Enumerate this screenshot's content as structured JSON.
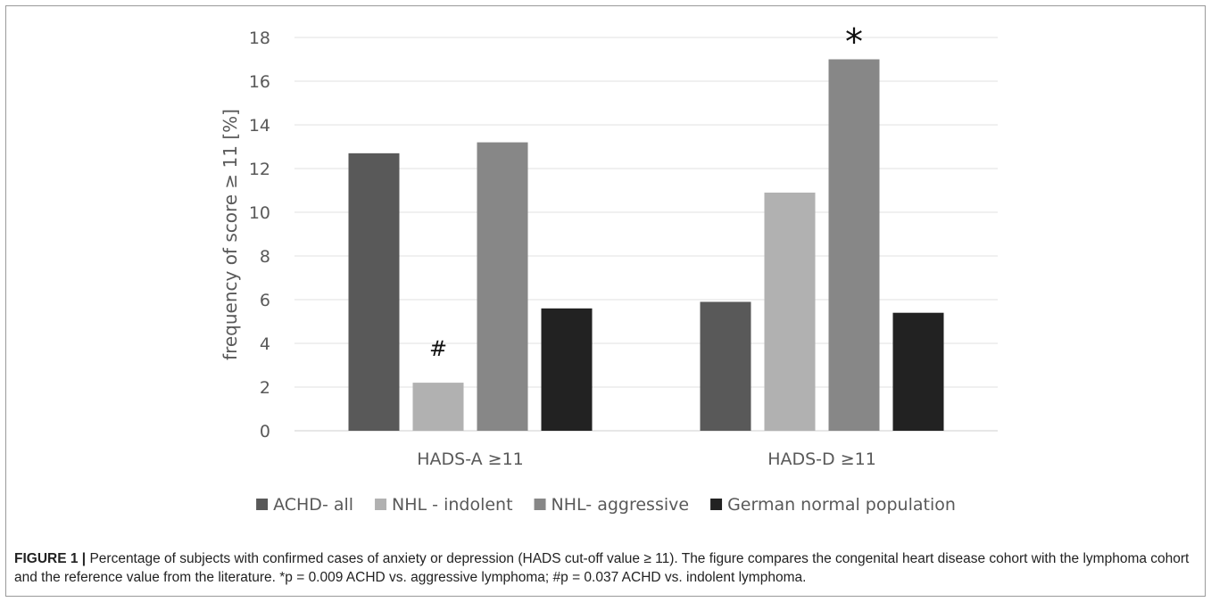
{
  "chart_data": {
    "type": "bar",
    "title": "",
    "xlabel": "",
    "ylabel": "frequency of score ≥ 11 [%]",
    "ylim": [
      0,
      18
    ],
    "yticks": [
      0,
      2,
      4,
      6,
      8,
      10,
      12,
      14,
      16,
      18
    ],
    "grid": true,
    "legend_position": "bottom",
    "categories": [
      "HADS-A ≥11",
      "HADS-D ≥11"
    ],
    "series": [
      {
        "name": "ACHD- all",
        "values": [
          12.7,
          5.9
        ],
        "color": "#595959"
      },
      {
        "name": "NHL - indolent",
        "values": [
          2.2,
          10.9
        ],
        "color": "#b1b1b1"
      },
      {
        "name": "NHL- aggressive",
        "values": [
          13.2,
          17.0
        ],
        "color": "#878787"
      },
      {
        "name": "German normal population",
        "values": [
          5.6,
          5.4
        ],
        "color": "#222222"
      }
    ],
    "annotations": [
      {
        "text": "#",
        "category": 0,
        "series": 1
      },
      {
        "text": "*",
        "category": 1,
        "series": 2
      }
    ]
  },
  "caption": {
    "lead": "FIGURE 1 |",
    "text": " Percentage of subjects with confirmed cases of anxiety or depression (HADS cut-off value ≥ 11). The figure compares the congenital heart disease cohort with the lymphoma cohort and the reference value from the literature. *p = 0.009 ACHD vs. aggressive lymphoma; #p = 0.037 ACHD vs. indolent lymphoma."
  }
}
